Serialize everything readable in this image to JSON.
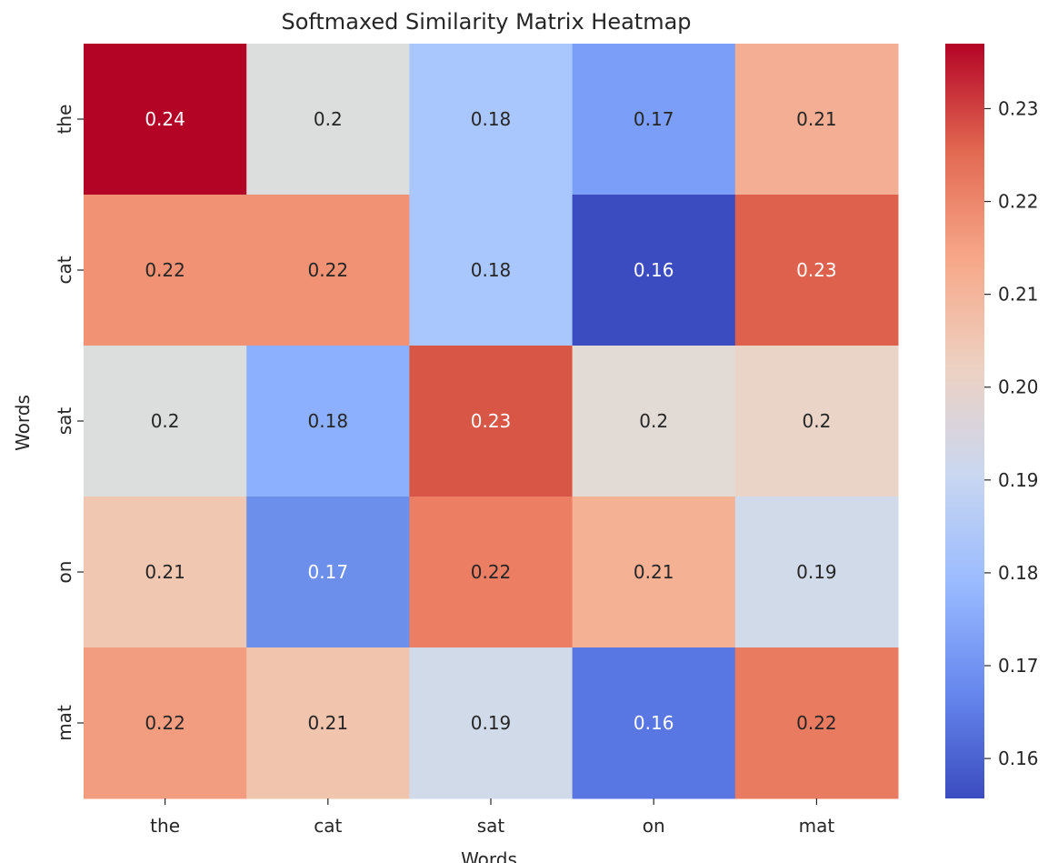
{
  "chart_data": {
    "type": "heatmap",
    "title": "Softmaxed Similarity Matrix Heatmap",
    "xlabel": "Words",
    "ylabel": "Words",
    "x_categories": [
      "the",
      "cat",
      "sat",
      "on",
      "mat"
    ],
    "y_categories": [
      "the",
      "cat",
      "sat",
      "on",
      "mat"
    ],
    "values": [
      [
        0.24,
        0.2,
        0.18,
        0.17,
        0.21
      ],
      [
        0.22,
        0.22,
        0.18,
        0.16,
        0.23
      ],
      [
        0.2,
        0.18,
        0.23,
        0.2,
        0.2
      ],
      [
        0.21,
        0.17,
        0.22,
        0.21,
        0.19
      ],
      [
        0.22,
        0.21,
        0.19,
        0.16,
        0.22
      ]
    ],
    "labels": [
      [
        "0.24",
        "0.2",
        "0.18",
        "0.17",
        "0.21"
      ],
      [
        "0.22",
        "0.22",
        "0.18",
        "0.16",
        "0.23"
      ],
      [
        "0.2",
        "0.18",
        "0.23",
        "0.2",
        "0.2"
      ],
      [
        "0.21",
        "0.17",
        "0.22",
        "0.21",
        "0.19"
      ],
      [
        "0.22",
        "0.21",
        "0.19",
        "0.16",
        "0.22"
      ]
    ],
    "cell_colors": [
      [
        "#b40426",
        "#dcdddd",
        "#aac7fd",
        "#7b9ff9",
        "#f3ae93"
      ],
      [
        "#f29274",
        "#f29274",
        "#aac7fd",
        "#3b4cc0",
        "#de614d"
      ],
      [
        "#dcdddd",
        "#8db0fe",
        "#d85646",
        "#e2dad5",
        "#ead4c8"
      ],
      [
        "#f0c7b1",
        "#6d8fec",
        "#ec7f63",
        "#f4b194",
        "#d1dae9"
      ],
      [
        "#f39d80",
        "#f1c4ad",
        "#d0dae9",
        "#5977e3",
        "#e97b60"
      ]
    ],
    "colorbar": {
      "colormap": "coolwarm",
      "range": [
        0.1557,
        0.237
      ],
      "ticks": [
        "0.16",
        "0.17",
        "0.18",
        "0.19",
        "0.20",
        "0.21",
        "0.22",
        "0.23"
      ],
      "tick_values": [
        0.16,
        0.17,
        0.18,
        0.19,
        0.2,
        0.21,
        0.22,
        0.23
      ],
      "gradient": [
        "#3b4cc0",
        "#6788ee",
        "#9abbff",
        "#c9d7f0",
        "#edd1c2",
        "#f7a889",
        "#e26952",
        "#b40426"
      ]
    },
    "grid": false
  }
}
